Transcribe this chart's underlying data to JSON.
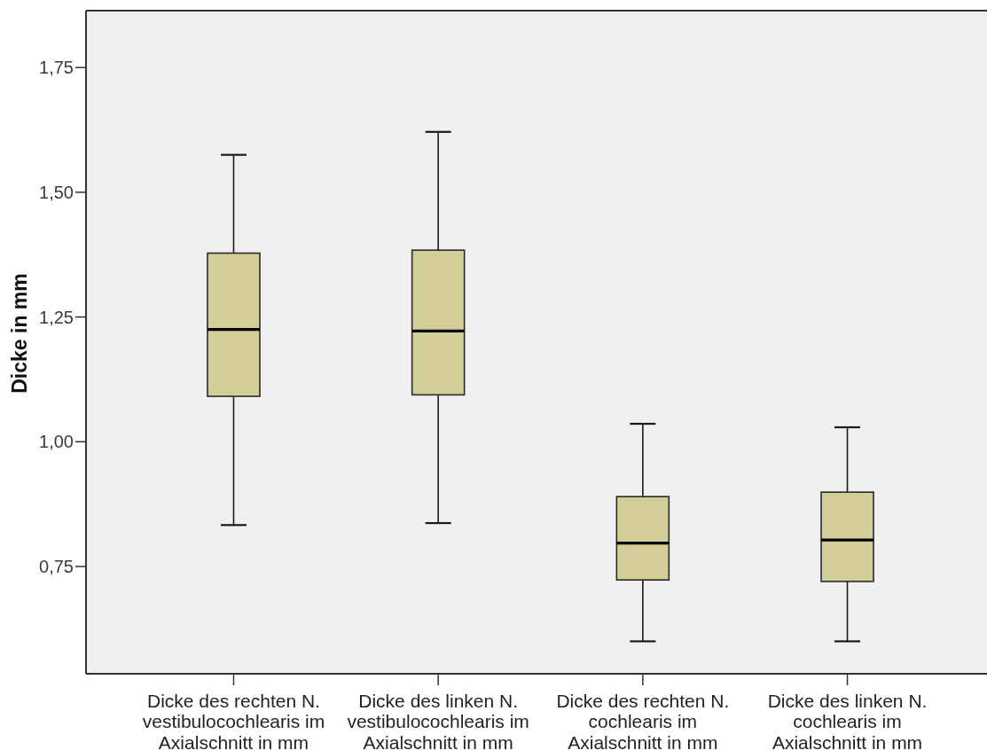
{
  "chart_data": {
    "type": "box",
    "ylabel": "Dicke in mm",
    "categories": [
      "Dicke des rechten N. vestibulocochlearis im Axialschnitt in mm",
      "Dicke des linken N. vestibulocochlearis im Axialschnitt in mm",
      "Dicke des rechten N. cochlearis im Axialschnitt in mm",
      "Dicke des linken N. cochlearis im Axialschnitt in mm"
    ],
    "series": [
      {
        "color": "#d3ce98",
        "boxes": [
          {
            "low": 0.833,
            "q1": 1.091,
            "median": 1.225,
            "q3": 1.378,
            "high": 1.575
          },
          {
            "low": 0.837,
            "q1": 1.094,
            "median": 1.222,
            "q3": 1.384,
            "high": 1.621
          },
          {
            "low": 0.6,
            "q1": 0.723,
            "median": 0.797,
            "q3": 0.89,
            "high": 1.036
          },
          {
            "low": 0.6,
            "q1": 0.72,
            "median": 0.803,
            "q3": 0.899,
            "high": 1.029
          }
        ]
      }
    ],
    "ylim": [
      0.535,
      1.864
    ],
    "yticks": [
      {
        "value": 0.75,
        "label": "0,75"
      },
      {
        "value": 1.0,
        "label": "1,00"
      },
      {
        "value": 1.25,
        "label": "1,25"
      },
      {
        "value": 1.5,
        "label": "1,50"
      },
      {
        "value": 1.75,
        "label": "1,75"
      }
    ]
  }
}
